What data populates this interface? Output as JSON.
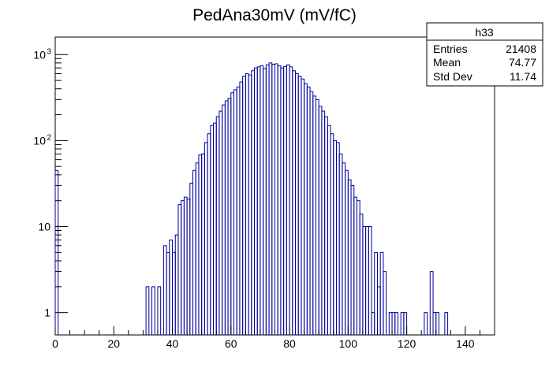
{
  "chart_data": {
    "type": "bar",
    "style": "step-histogram",
    "title": "PedAna30mV (mV/fC)",
    "xlabel": "",
    "ylabel": "",
    "xlim": [
      0,
      150
    ],
    "ylim": [
      0.55,
      1600
    ],
    "yscale": "log",
    "grid": false,
    "line_color": "#000099",
    "bin_width": 1,
    "x_ticks": [
      0,
      20,
      40,
      60,
      80,
      100,
      120,
      140
    ],
    "y_ticks": [
      {
        "value": 1,
        "label": "1"
      },
      {
        "value": 10,
        "label": "10"
      },
      {
        "value": 100,
        "label": "10",
        "exp": "2"
      },
      {
        "value": 1000,
        "label": "10",
        "exp": "3"
      }
    ],
    "bins": [
      {
        "x": 0,
        "y": 45
      },
      {
        "x": 31,
        "y": 2
      },
      {
        "x": 33,
        "y": 2
      },
      {
        "x": 35,
        "y": 2
      },
      {
        "x": 37,
        "y": 6
      },
      {
        "x": 38,
        "y": 5
      },
      {
        "x": 39,
        "y": 7
      },
      {
        "x": 40,
        "y": 5
      },
      {
        "x": 41,
        "y": 8
      },
      {
        "x": 42,
        "y": 18
      },
      {
        "x": 43,
        "y": 20
      },
      {
        "x": 44,
        "y": 22
      },
      {
        "x": 45,
        "y": 21
      },
      {
        "x": 46,
        "y": 32
      },
      {
        "x": 47,
        "y": 45
      },
      {
        "x": 48,
        "y": 55
      },
      {
        "x": 49,
        "y": 68
      },
      {
        "x": 50,
        "y": 70
      },
      {
        "x": 51,
        "y": 95
      },
      {
        "x": 52,
        "y": 120
      },
      {
        "x": 53,
        "y": 150
      },
      {
        "x": 54,
        "y": 160
      },
      {
        "x": 55,
        "y": 190
      },
      {
        "x": 56,
        "y": 220
      },
      {
        "x": 57,
        "y": 260
      },
      {
        "x": 58,
        "y": 290
      },
      {
        "x": 59,
        "y": 310
      },
      {
        "x": 60,
        "y": 360
      },
      {
        "x": 61,
        "y": 390
      },
      {
        "x": 62,
        "y": 420
      },
      {
        "x": 63,
        "y": 480
      },
      {
        "x": 64,
        "y": 560
      },
      {
        "x": 65,
        "y": 600
      },
      {
        "x": 66,
        "y": 580
      },
      {
        "x": 67,
        "y": 650
      },
      {
        "x": 68,
        "y": 700
      },
      {
        "x": 69,
        "y": 720
      },
      {
        "x": 70,
        "y": 740
      },
      {
        "x": 71,
        "y": 690
      },
      {
        "x": 72,
        "y": 760
      },
      {
        "x": 73,
        "y": 800
      },
      {
        "x": 74,
        "y": 770
      },
      {
        "x": 75,
        "y": 780
      },
      {
        "x": 76,
        "y": 740
      },
      {
        "x": 77,
        "y": 700
      },
      {
        "x": 78,
        "y": 730
      },
      {
        "x": 79,
        "y": 760
      },
      {
        "x": 80,
        "y": 720
      },
      {
        "x": 81,
        "y": 650
      },
      {
        "x": 82,
        "y": 600
      },
      {
        "x": 83,
        "y": 560
      },
      {
        "x": 84,
        "y": 520
      },
      {
        "x": 85,
        "y": 460
      },
      {
        "x": 86,
        "y": 420
      },
      {
        "x": 87,
        "y": 370
      },
      {
        "x": 88,
        "y": 330
      },
      {
        "x": 89,
        "y": 300
      },
      {
        "x": 90,
        "y": 250
      },
      {
        "x": 91,
        "y": 220
      },
      {
        "x": 92,
        "y": 190
      },
      {
        "x": 93,
        "y": 150
      },
      {
        "x": 94,
        "y": 120
      },
      {
        "x": 95,
        "y": 100
      },
      {
        "x": 96,
        "y": 95
      },
      {
        "x": 97,
        "y": 70
      },
      {
        "x": 98,
        "y": 55
      },
      {
        "x": 99,
        "y": 45
      },
      {
        "x": 100,
        "y": 35
      },
      {
        "x": 101,
        "y": 30
      },
      {
        "x": 102,
        "y": 22
      },
      {
        "x": 103,
        "y": 20
      },
      {
        "x": 104,
        "y": 14
      },
      {
        "x": 105,
        "y": 10
      },
      {
        "x": 106,
        "y": 10
      },
      {
        "x": 107,
        "y": 10
      },
      {
        "x": 108,
        "y": 1
      },
      {
        "x": 109,
        "y": 5
      },
      {
        "x": 110,
        "y": 2
      },
      {
        "x": 111,
        "y": 5
      },
      {
        "x": 112,
        "y": 3
      },
      {
        "x": 114,
        "y": 1
      },
      {
        "x": 115,
        "y": 1
      },
      {
        "x": 116,
        "y": 1
      },
      {
        "x": 118,
        "y": 1
      },
      {
        "x": 119,
        "y": 1
      },
      {
        "x": 126,
        "y": 1
      },
      {
        "x": 128,
        "y": 3
      },
      {
        "x": 129,
        "y": 1
      },
      {
        "x": 130,
        "y": 1
      },
      {
        "x": 133,
        "y": 1
      }
    ],
    "stats": {
      "name": "h33",
      "rows": [
        {
          "label": "Entries",
          "value": "21408"
        },
        {
          "label": "Mean",
          "value": "74.77"
        },
        {
          "label": "Std Dev",
          "value": "11.74"
        }
      ]
    }
  }
}
